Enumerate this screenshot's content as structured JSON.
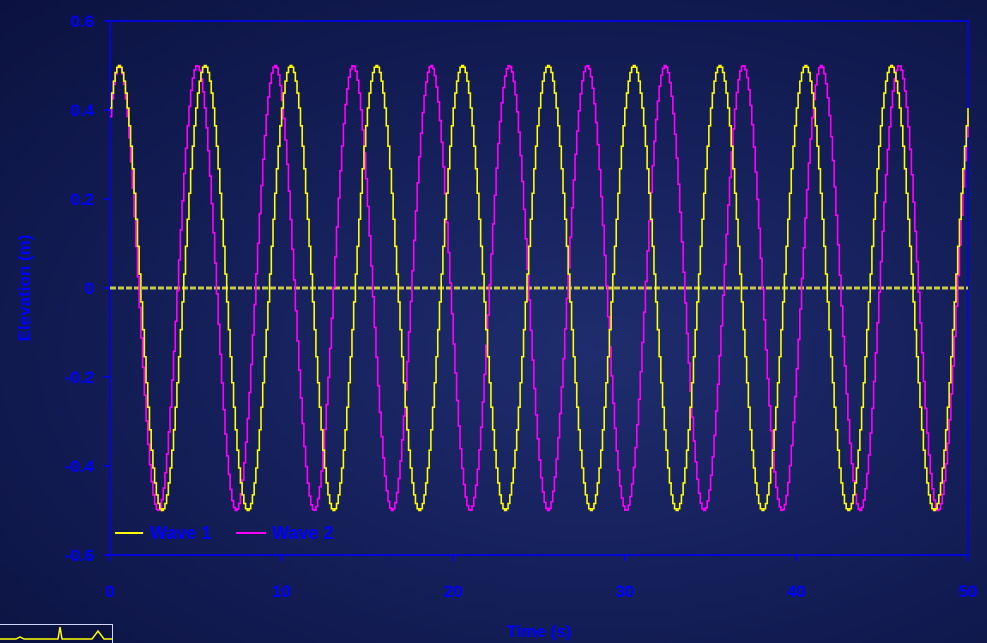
{
  "colors": {
    "axis": "#0000ff",
    "wave1": "#ffff00",
    "wave2": "#ff00ff",
    "zero_line": "#c8c84a"
  },
  "chart_data": {
    "type": "line",
    "title": "",
    "xlabel": "Time (s)",
    "ylabel": "Elevation (m)",
    "xlim": [
      0,
      50
    ],
    "ylim": [
      -0.6,
      0.6
    ],
    "xticks": [
      0,
      10,
      20,
      30,
      40,
      50
    ],
    "yticks": [
      0.6,
      0.4,
      0.2,
      0,
      -0.2,
      -0.4,
      -0.6
    ],
    "xtick_labels": [
      "0",
      "10",
      "20",
      "30",
      "40",
      "50"
    ],
    "ytick_labels": [
      "0.6",
      "0.4",
      "0.2",
      "0",
      "-0.2",
      "-0.4",
      "-0.6"
    ],
    "grid": false,
    "legend_position": "bottom-left",
    "series": [
      {
        "name": "Wave 1",
        "color": "#ffff00",
        "amplitude": 0.5,
        "period": 5.0,
        "phase_peak_time": 0.5,
        "peak_times": [
          0.5,
          5.5,
          10.5,
          15.5,
          20.5,
          25.5,
          30.5,
          35.5,
          40.5,
          45.5
        ],
        "trough_times": [
          3.0,
          8.0,
          13.0,
          18.0,
          23.0,
          28.0,
          33.0,
          38.0,
          43.0,
          48.0
        ]
      },
      {
        "name": "Wave 2",
        "color": "#ff00ff",
        "amplitude": 0.5,
        "period": 4.545,
        "phase_peak_time": 0.5,
        "peak_times": [
          0.5,
          5.0,
          9.6,
          14.1,
          18.7,
          23.2,
          27.8,
          32.3,
          36.9,
          41.4,
          46.0
        ],
        "trough_times": [
          2.8,
          7.3,
          11.8,
          16.4,
          20.9,
          25.5,
          30.0,
          34.6,
          39.1,
          43.7,
          48.2
        ]
      },
      {
        "name": "",
        "color": "#c8c84a",
        "x": [
          0,
          50
        ],
        "y": [
          0,
          0
        ]
      }
    ]
  }
}
